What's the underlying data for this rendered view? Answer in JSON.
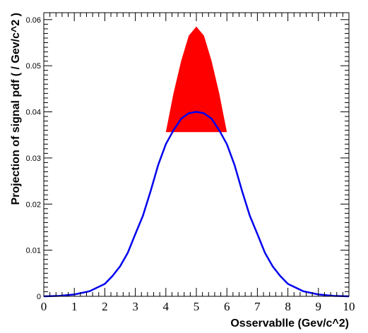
{
  "chart_data": {
    "type": "line",
    "title": "",
    "xlabel": "Osservablle (Gev/c^2)",
    "ylabel": "Projection of signal pdf ( / Gev/c^2 )",
    "xlim": [
      0,
      10
    ],
    "ylim": [
      0,
      0.0615
    ],
    "x_ticks": [
      "0",
      "1",
      "2",
      "3",
      "4",
      "5",
      "6",
      "7",
      "8",
      "9",
      "10"
    ],
    "y_ticks": [
      "0",
      "0.01",
      "0.02",
      "0.03",
      "0.04",
      "0.05",
      "0.06"
    ],
    "grid": false,
    "series": [
      {
        "color": "#0000ee",
        "x": [
          0,
          0.5,
          1,
          1.5,
          2,
          2.25,
          2.5,
          2.75,
          3,
          3.25,
          3.5,
          3.75,
          4,
          4.25,
          4.5,
          4.75,
          5,
          5.25,
          5.5,
          5.75,
          6,
          6.25,
          6.5,
          6.75,
          7,
          7.25,
          7.5,
          7.75,
          8,
          8.5,
          9,
          9.5,
          10
        ],
        "y": [
          0.0,
          0.0001,
          0.0004,
          0.0011,
          0.0027,
          0.0044,
          0.0065,
          0.0094,
          0.0135,
          0.0175,
          0.0228,
          0.0285,
          0.033,
          0.036,
          0.0385,
          0.0397,
          0.04,
          0.0397,
          0.0385,
          0.036,
          0.033,
          0.0285,
          0.0228,
          0.0175,
          0.0135,
          0.0094,
          0.0065,
          0.0044,
          0.0027,
          0.0011,
          0.0004,
          0.0001,
          0.0
        ]
      }
    ],
    "band": {
      "color": "#ff0000",
      "x": [
        4.0,
        4.25,
        4.5,
        4.75,
        5.0,
        5.25,
        5.5,
        5.75,
        6.0
      ],
      "y_low": 0.0356,
      "y_high": [
        0.0356,
        0.044,
        0.051,
        0.0565,
        0.0585,
        0.0565,
        0.051,
        0.044,
        0.0356
      ]
    }
  }
}
